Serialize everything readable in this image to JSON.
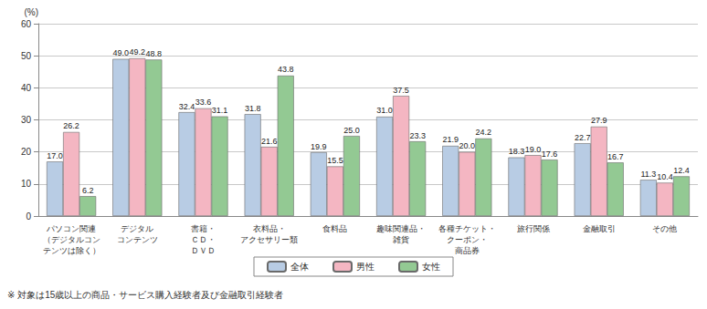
{
  "chart_data": {
    "type": "bar",
    "y_label": "(%)",
    "annotations": [
      "※ 対象は15歳以上の商品・サービス購入経験者及び金融取引経験者"
    ],
    "categories": [
      "パソコン関連\n（デジタルコン\nテンツは除く）",
      "デジタル\nコンテンツ",
      "書籍・\nＣＤ・\nＤＶＤ",
      "衣料品・\nアクセサリー類",
      "食料品",
      "趣味関連品・\n雑貨",
      "各種チケット・\nクーポン・\n商品券",
      "旅行関係",
      "金融取引",
      "その他"
    ],
    "series": [
      {
        "name": "全体",
        "color": "#b8cce4",
        "values": [
          17.0,
          49.0,
          32.4,
          31.8,
          19.9,
          31.0,
          21.9,
          18.3,
          22.7,
          11.3
        ],
        "value_labels": [
          "17.0",
          "49.0",
          "32.4",
          "31.8",
          "19.9",
          "31.0",
          "21.9",
          "18.3",
          "22.7",
          "11.3"
        ]
      },
      {
        "name": "男性",
        "color": "#f4b6c2",
        "values": [
          26.2,
          49.2,
          33.6,
          21.6,
          15.5,
          37.5,
          20.0,
          19.0,
          27.9,
          10.4
        ],
        "value_labels": [
          "26.2",
          "49.2",
          "33.6",
          "21.6",
          "15.5",
          "37.5",
          "20.0",
          "19.0",
          "27.9",
          "10.4"
        ]
      },
      {
        "name": "女性",
        "color": "#93c993",
        "values": [
          6.2,
          48.8,
          31.1,
          43.8,
          25.0,
          23.3,
          24.2,
          17.6,
          16.7,
          12.4
        ],
        "value_labels": [
          "6.2",
          "48.8",
          "31.1",
          "43.8",
          "25.0",
          "23.3",
          "24.2",
          "17.6",
          "16.7",
          "12.4"
        ]
      }
    ],
    "ylim": [
      0,
      60
    ],
    "yticks": [
      0,
      10,
      20,
      30,
      40,
      50,
      60
    ],
    "grid": true,
    "legend": "bottom",
    "data_labels": true
  }
}
